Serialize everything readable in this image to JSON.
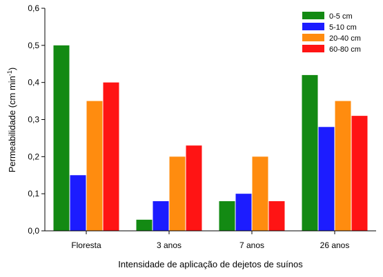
{
  "chart_data": {
    "type": "bar",
    "xlabel": "Intensidade de aplicação de dejetos de suínos",
    "ylabel_main": "Permeabilidade (cm min",
    "ylabel_sup": "-1",
    "ylabel_end": ")",
    "ylim": [
      0,
      0.6
    ],
    "yticks": [
      "0,0",
      "0,1",
      "0,2",
      "0,3",
      "0,4",
      "0,5",
      "0,6"
    ],
    "categories": [
      "Floresta",
      "3 anos",
      "7 anos",
      "26 anos"
    ],
    "series": [
      {
        "name": "0-5 cm",
        "color": "#138a13",
        "values": [
          0.5,
          0.03,
          0.08,
          0.42
        ]
      },
      {
        "name": "5-10 cm",
        "color": "#1c1cff",
        "values": [
          0.15,
          0.08,
          0.1,
          0.28
        ]
      },
      {
        "name": "20-40 cm",
        "color": "#ff8c0f",
        "values": [
          0.35,
          0.2,
          0.2,
          0.35
        ]
      },
      {
        "name": "60-80 cm",
        "color": "#ff1414",
        "values": [
          0.4,
          0.23,
          0.08,
          0.31
        ]
      }
    ],
    "legend_position": "top-right",
    "grid": false
  }
}
